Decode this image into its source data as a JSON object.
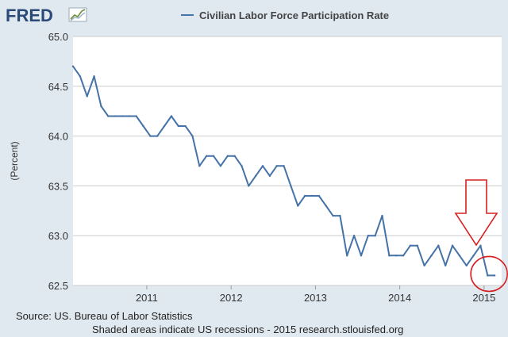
{
  "brand": {
    "name": "FRED"
  },
  "colors": {
    "background": "#e1e9f0",
    "plot_background": "#ffffff",
    "series_line": "#4572a7",
    "annotation": "#d62020",
    "grid": "#cccccc"
  },
  "source_text": "Source: US. Bureau of Labor Statistics",
  "footer_text": "Shaded areas indicate US recessions - 2015 research.stlouisfed.org",
  "chart_data": {
    "type": "line",
    "title": "",
    "xlabel": "",
    "ylabel": "(Percent)",
    "ylim": [
      62.5,
      65.0
    ],
    "y_ticks": [
      "62.5",
      "63.0",
      "63.5",
      "64.0",
      "64.5",
      "65.0"
    ],
    "x_ticks": [
      "2011",
      "2012",
      "2013",
      "2014",
      "2015"
    ],
    "grid": true,
    "legend_position": "top",
    "series": [
      {
        "name": "Civilian Labor Force Participation Rate",
        "x": [
          "2010-08",
          "2010-09",
          "2010-10",
          "2010-11",
          "2010-12",
          "2011-01",
          "2011-02",
          "2011-03",
          "2011-04",
          "2011-05",
          "2011-06",
          "2011-07",
          "2011-08",
          "2011-09",
          "2011-10",
          "2011-11",
          "2011-12",
          "2012-01",
          "2012-02",
          "2012-03",
          "2012-04",
          "2012-05",
          "2012-06",
          "2012-07",
          "2012-08",
          "2012-09",
          "2012-10",
          "2012-11",
          "2012-12",
          "2013-01",
          "2013-02",
          "2013-03",
          "2013-04",
          "2013-05",
          "2013-06",
          "2013-07",
          "2013-08",
          "2013-09",
          "2013-10",
          "2013-11",
          "2013-12",
          "2014-01",
          "2014-02",
          "2014-03",
          "2014-04",
          "2014-05",
          "2014-06",
          "2014-07",
          "2014-08",
          "2014-09",
          "2014-10",
          "2014-11",
          "2014-12",
          "2015-01",
          "2015-02",
          "2015-03",
          "2015-04",
          "2015-05",
          "2015-06",
          "2015-07",
          "2015-08"
        ],
        "values": [
          64.7,
          64.6,
          64.4,
          64.6,
          64.3,
          64.2,
          64.2,
          64.2,
          64.2,
          64.2,
          64.1,
          64.0,
          64.0,
          64.1,
          64.2,
          64.1,
          64.1,
          64.0,
          63.7,
          63.8,
          63.8,
          63.7,
          63.8,
          63.8,
          63.7,
          63.5,
          63.6,
          63.7,
          63.6,
          63.7,
          63.7,
          63.5,
          63.3,
          63.4,
          63.4,
          63.4,
          63.3,
          63.2,
          63.2,
          62.8,
          63.0,
          62.8,
          63.0,
          63.0,
          63.2,
          62.8,
          62.8,
          62.8,
          62.9,
          62.9,
          62.7,
          62.8,
          62.9,
          62.7,
          62.9,
          62.8,
          62.7,
          62.8,
          62.9,
          62.6,
          62.6
        ]
      }
    ],
    "annotations": [
      {
        "type": "down-arrow",
        "color": "#d62020"
      },
      {
        "type": "circle",
        "color": "#d62020",
        "target_x": "2015-08",
        "target_value": 62.6
      }
    ]
  }
}
